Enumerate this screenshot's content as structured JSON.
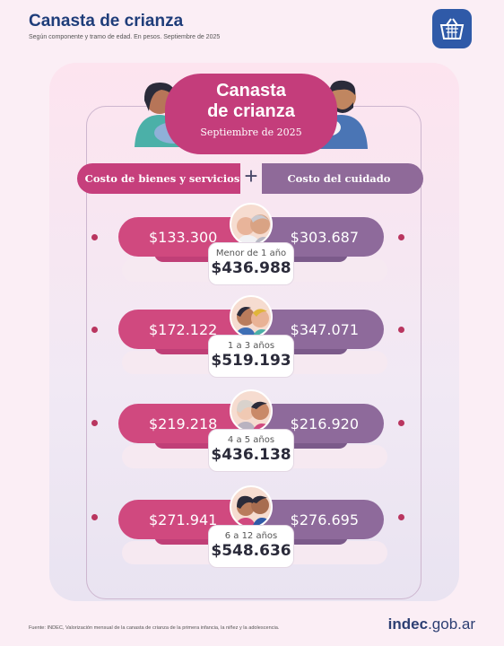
{
  "header": {
    "title": "Canasta de crianza",
    "subtitle": "Según componente y tramo de edad. En pesos. Septiembre de 2025"
  },
  "hero": {
    "title_line1": "Canasta",
    "title_line2": "de crianza",
    "date": "Septiembre de 2025"
  },
  "components": {
    "goods_label": "Costo de bienes y servicios",
    "plus": "+",
    "care_label": "Costo del cuidado"
  },
  "rows": [
    {
      "goods": "$133.300",
      "care": "$303.687",
      "age": "Menor de 1 año",
      "total": "$436.988"
    },
    {
      "goods": "$172.122",
      "care": "$347.071",
      "age": "1 a 3 años",
      "total": "$519.193"
    },
    {
      "goods": "$219.218",
      "care": "$216.920",
      "age": "4 a 5 años",
      "total": "$436.138"
    },
    {
      "goods": "$271.941",
      "care": "$276.695",
      "age": "6 a 12 años",
      "total": "$548.636"
    }
  ],
  "footer": {
    "source": "Fuente: INDEC, Valorización mensual de la canasta de crianza de la primera infancia, la niñez y la adolescencia.",
    "logo_main": "indec",
    "logo_suffix": ".gob.ar"
  },
  "colors": {
    "goods": "#d0497f",
    "care": "#8e6a9b",
    "title": "#1f3d7a"
  },
  "icons": [
    "basket-icon",
    "mother-illustration",
    "father-illustration",
    "baby-avatar",
    "toddler-avatar",
    "child-avatar",
    "kids-avatar"
  ]
}
